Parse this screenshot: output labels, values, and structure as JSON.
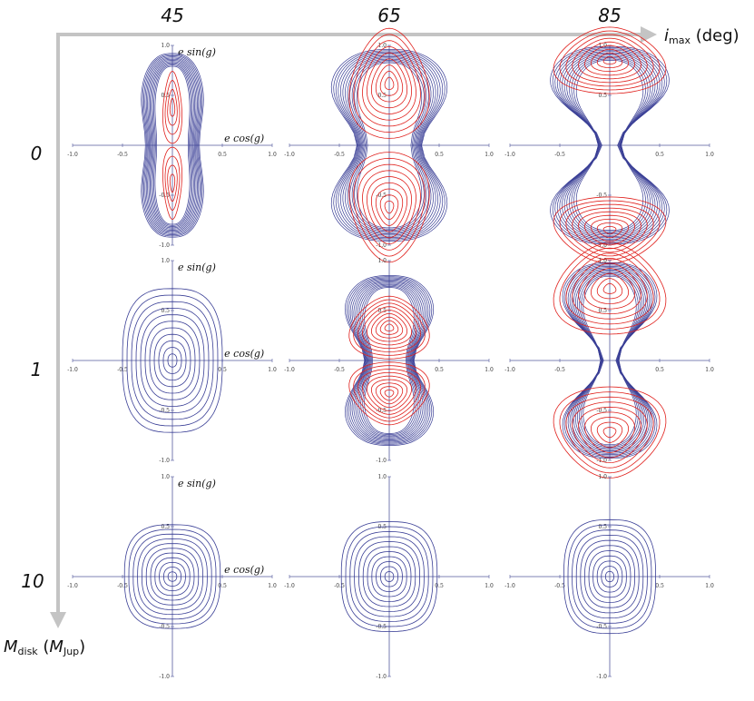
{
  "column_header": {
    "values": [
      "45",
      "65",
      "85"
    ],
    "title_var": "i",
    "title_sub": "max",
    "title_unit": " (deg)"
  },
  "row_header": {
    "values": [
      "0",
      "1",
      "10"
    ],
    "title_var": "M",
    "title_sub": "disk",
    "title_unit_open": " (",
    "title_unit_var": "M",
    "title_unit_sub": "Jup",
    "title_unit_close": ")"
  },
  "panel_axis_labels": {
    "x": "e cos(g)",
    "y": "e sin(g)"
  },
  "colors": {
    "circulating": "#3a3f96",
    "librating": "#e0201c",
    "arrow": "#c0c0c0",
    "axis": "#555a9e"
  },
  "chart_data": [
    {
      "type": "line",
      "i_max_deg": 45,
      "M_disk_Mjup": 0,
      "xlim": [
        -1.0,
        1.0
      ],
      "ylim": [
        -1.0,
        1.0
      ],
      "xticks": [
        "-1.0",
        "-0.5",
        "0.5",
        "1.0"
      ],
      "yticks": [
        "1.0",
        "0.5",
        "-0.5",
        "-1.0"
      ],
      "xlabel": "e cos(g)",
      "ylabel": "e sin(g)",
      "regime": "kozai_libration",
      "outer_half_width": 0.36,
      "outer_half_height": 0.92,
      "separatrix_e": 0.5,
      "libration_center_y": 0.38
    },
    {
      "type": "line",
      "i_max_deg": 65,
      "M_disk_Mjup": 0,
      "xlim": [
        -1.0,
        1.0
      ],
      "ylim": [
        -1.0,
        1.0
      ],
      "xticks": [
        "-1.0",
        "-0.5",
        "0.5",
        "1.0"
      ],
      "yticks": [
        "1.0",
        "0.5",
        "-0.5",
        "-1.0"
      ],
      "regime": "kozai_libration",
      "outer_half_width": 0.72,
      "outer_half_height": 0.96,
      "libration_center_y": 0.62
    },
    {
      "type": "line",
      "i_max_deg": 85,
      "M_disk_Mjup": 0,
      "xlim": [
        -1.0,
        1.0
      ],
      "ylim": [
        -1.0,
        1.0
      ],
      "xticks": [
        "-1.0",
        "-0.5",
        "0.5",
        "1.0"
      ],
      "yticks": [
        "1.0",
        "0.5",
        "-0.5",
        "-1.0"
      ],
      "regime": "kozai_libration",
      "outer_half_width": 0.78,
      "outer_half_height": 0.99,
      "libration_center_y": 0.85
    },
    {
      "type": "line",
      "i_max_deg": 45,
      "M_disk_Mjup": 1,
      "xlim": [
        -1.0,
        1.0
      ],
      "ylim": [
        -1.0,
        1.0
      ],
      "xticks": [
        "-1.0",
        "-0.5",
        "0.5",
        "1.0"
      ],
      "yticks": [
        "1.0",
        "0.5",
        "-0.5",
        "-1.0"
      ],
      "xlabel": "e cos(g)",
      "ylabel": "e sin(g)",
      "regime": "circulation",
      "outer_half_width": 0.5,
      "outer_half_height": 0.72
    },
    {
      "type": "line",
      "i_max_deg": 65,
      "M_disk_Mjup": 1,
      "xlim": [
        -1.0,
        1.0
      ],
      "ylim": [
        -1.0,
        1.0
      ],
      "xticks": [
        "-1.0",
        "-0.5",
        "0.5",
        "1.0"
      ],
      "yticks": [
        "1.0",
        "0.5",
        "-0.5",
        "-1.0"
      ],
      "regime": "kozai_libration",
      "outer_half_width": 0.55,
      "outer_half_height": 0.85,
      "libration_center_y": 0.33
    },
    {
      "type": "line",
      "i_max_deg": 85,
      "M_disk_Mjup": 1,
      "xlim": [
        -1.0,
        1.0
      ],
      "ylim": [
        -1.0,
        1.0
      ],
      "xticks": [
        "-1.0",
        "-0.5",
        "0.5",
        "1.0"
      ],
      "yticks": [
        "1.0",
        "0.5",
        "-0.5",
        "-1.0"
      ],
      "regime": "kozai_libration",
      "outer_half_width": 0.62,
      "outer_half_height": 0.98,
      "libration_center_y": 0.72
    },
    {
      "type": "line",
      "i_max_deg": 45,
      "M_disk_Mjup": 10,
      "xlim": [
        -1.0,
        1.0
      ],
      "ylim": [
        -1.0,
        1.0
      ],
      "xticks": [
        "-1.0",
        "-0.5",
        "0.5",
        "1.0"
      ],
      "yticks": [
        "1.0",
        "0.5",
        "-0.5",
        "-1.0"
      ],
      "xlabel": "e cos(g)",
      "ylabel": "e sin(g)",
      "regime": "circulation",
      "outer_half_width": 0.48,
      "outer_half_height": 0.52
    },
    {
      "type": "line",
      "i_max_deg": 65,
      "M_disk_Mjup": 10,
      "xlim": [
        -1.0,
        1.0
      ],
      "ylim": [
        -1.0,
        1.0
      ],
      "xticks": [
        "-1.0",
        "-0.5",
        "0.5",
        "1.0"
      ],
      "yticks": [
        "1.0",
        "0.5",
        "-0.5",
        "-1.0"
      ],
      "regime": "circulation",
      "outer_half_width": 0.48,
      "outer_half_height": 0.55
    },
    {
      "type": "line",
      "i_max_deg": 85,
      "M_disk_Mjup": 10,
      "xlim": [
        -1.0,
        1.0
      ],
      "ylim": [
        -1.0,
        1.0
      ],
      "xticks": [
        "-1.0",
        "-0.5",
        "0.5",
        "1.0"
      ],
      "yticks": [
        "1.0",
        "0.5",
        "-0.5",
        "-1.0"
      ],
      "regime": "circulation",
      "outer_half_width": 0.46,
      "outer_half_height": 0.57
    }
  ]
}
